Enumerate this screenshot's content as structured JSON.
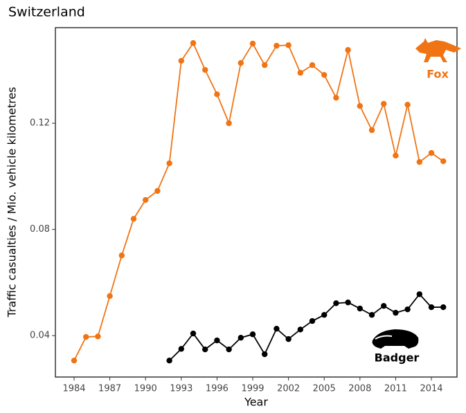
{
  "chart_data": {
    "type": "line",
    "title": "Switzerland",
    "x_label": "Year",
    "y_label": "Traffic casualties / Mio. vehicle kilometres",
    "x": [
      1984,
      1985,
      1986,
      1987,
      1988,
      1989,
      1990,
      1991,
      1992,
      1993,
      1994,
      1995,
      1996,
      1997,
      1998,
      1999,
      2000,
      2001,
      2002,
      2003,
      2004,
      2005,
      2006,
      2007,
      2008,
      2009,
      2010,
      2011,
      2012,
      2013,
      2014,
      2015
    ],
    "series": [
      {
        "name": "Fox",
        "color": "#f07314",
        "values": [
          0.0306,
          0.0395,
          0.0397,
          0.0549,
          0.0702,
          0.084,
          0.0911,
          0.0945,
          0.1049,
          0.1435,
          0.1502,
          0.1401,
          0.1309,
          0.12,
          0.1427,
          0.15,
          0.1419,
          0.1492,
          0.1494,
          0.139,
          0.1419,
          0.1382,
          0.1296,
          0.1476,
          0.1265,
          0.1174,
          0.1273,
          0.1078,
          0.127,
          0.1054,
          0.1088,
          0.1057
        ]
      },
      {
        "name": "Badger",
        "color": "#000000",
        "values": [
          null,
          null,
          null,
          null,
          null,
          null,
          null,
          null,
          0.0306,
          0.035,
          0.0408,
          0.0348,
          0.0382,
          0.0348,
          0.0392,
          0.0405,
          0.033,
          0.0426,
          0.0387,
          0.0423,
          0.0455,
          0.0478,
          0.0522,
          0.0525,
          0.0502,
          0.0478,
          0.0512,
          0.0486,
          0.0499,
          0.0556,
          0.0507,
          0.0507
        ]
      }
    ],
    "xlim": [
      1982.43,
      2016.15
    ],
    "ylim": [
      0.0244,
      0.156
    ],
    "xticks": [
      1984,
      1987,
      1990,
      1993,
      1996,
      1999,
      2002,
      2005,
      2008,
      2011,
      2014
    ],
    "yticks": [
      0.04,
      0.08,
      0.12
    ]
  }
}
